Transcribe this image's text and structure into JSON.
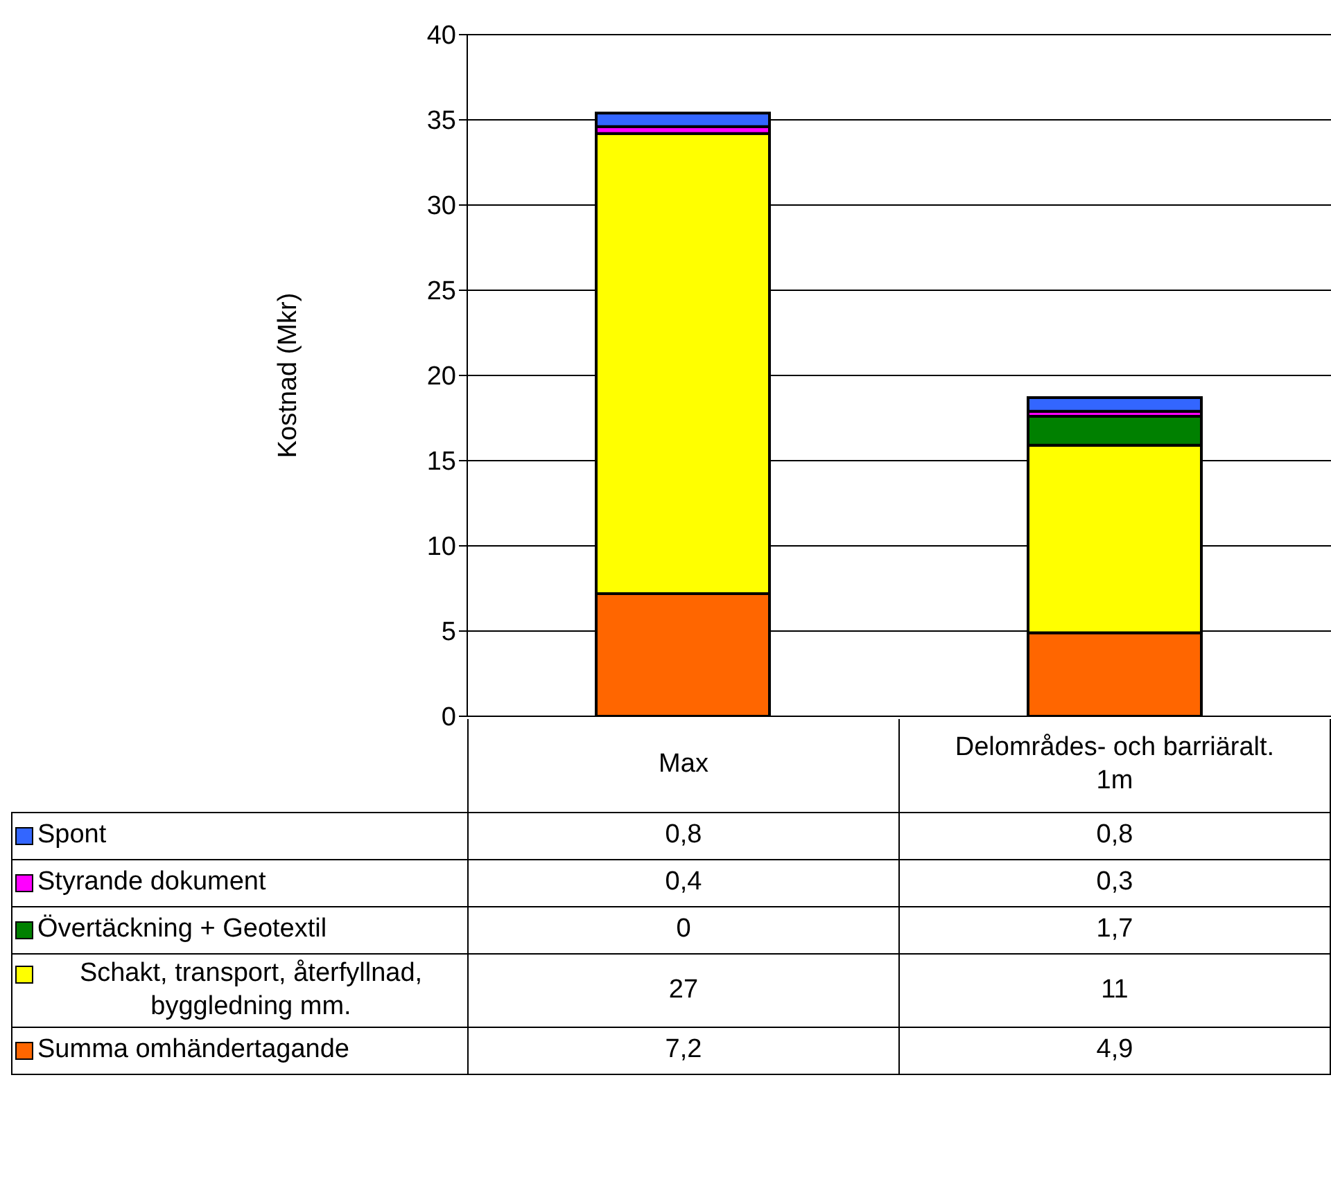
{
  "chart_data": {
    "type": "bar",
    "stacked": true,
    "ylabel": "Kostnad (Mkr)",
    "categories": [
      "Max",
      "Delområdes- och barriäralt. 1m"
    ],
    "series": [
      {
        "name": "Summa omhändertagande",
        "color": "#ff6600",
        "values": [
          7.2,
          4.9
        ],
        "value_labels": [
          "7,2",
          "4,9"
        ]
      },
      {
        "name": "Schakt, transport, återfyllnad, byggledning mm.",
        "color": "#ffff00",
        "values": [
          27,
          11
        ],
        "value_labels": [
          "27",
          "11"
        ]
      },
      {
        "name": "Övertäckning + Geotextil",
        "color": "#008000",
        "values": [
          0,
          1.7
        ],
        "value_labels": [
          "0",
          "1,7"
        ]
      },
      {
        "name": "Styrande dokument",
        "color": "#ff00ff",
        "values": [
          0.4,
          0.3
        ],
        "value_labels": [
          "0,4",
          "0,3"
        ]
      },
      {
        "name": "Spont",
        "color": "#3366ff",
        "values": [
          0.8,
          0.8
        ],
        "value_labels": [
          "0,8",
          "0,8"
        ]
      }
    ],
    "ylim": [
      0,
      40
    ],
    "yticks": [
      0,
      5,
      10,
      15,
      20,
      25,
      30,
      35,
      40
    ],
    "grid": "y",
    "legend": "bottom"
  }
}
